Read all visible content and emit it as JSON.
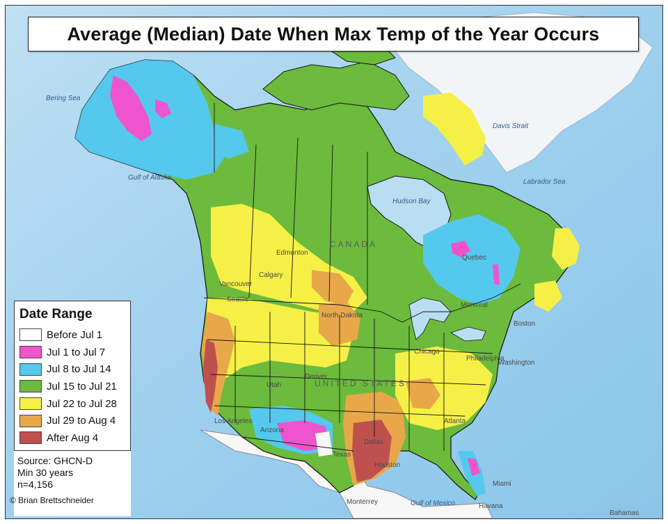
{
  "title": "Average (Median) Date When Max Temp of the Year Occurs",
  "legend": {
    "title": "Date Range",
    "items": [
      {
        "label": "Before Jul 1",
        "color": "#ffffff"
      },
      {
        "label": "Jul 1 to Jul 7",
        "color": "#ee55cc"
      },
      {
        "label": "Jul 8 to Jul 14",
        "color": "#55c8ee"
      },
      {
        "label": "Jul 15 to Jul 21",
        "color": "#6cbb3c"
      },
      {
        "label": "Jul 22 to Jul 28",
        "color": "#f6f046"
      },
      {
        "label": "Jul 29 to Aug 4",
        "color": "#e8a84a"
      },
      {
        "label": "After Aug 4",
        "color": "#c0504e"
      }
    ]
  },
  "source": {
    "line1": "Source: GHCN-D",
    "line2": "Min 30 years",
    "line3": "n=4,156"
  },
  "credit": "© Brian Brettschneider",
  "map_labels": {
    "bering_sea": "Bering Sea",
    "gulf_of_alaska": "Gulf of Alaska",
    "hudson_bay": "Hudson Bay",
    "davis_strait": "Davis Strait",
    "labrador_sea": "Labrador Sea",
    "canada": "CANADA",
    "united_states": "UNITED STATES",
    "edmonton": "Edmonton",
    "calgary": "Calgary",
    "vancouver": "Vancouver",
    "seattle": "Seattle",
    "quebec": "Quebec",
    "montreal": "Montreal",
    "boston": "Boston",
    "chicago": "Chicago",
    "philadelphia": "Philadelphia",
    "washington": "Washington",
    "denver": "Denver",
    "dallas": "Dallas",
    "houston": "Houston",
    "atlanta": "Atlanta",
    "miami": "Miami",
    "havana": "Havana",
    "monterrey": "Monterrey",
    "gulf_of_mexico": "Gulf of Mexico",
    "los_angeles": "Los Angeles",
    "arizona": "Arizona",
    "utah": "Utah",
    "north_dakota": "North Dakota",
    "texas": "Texas",
    "bahamas": "Bahamas"
  },
  "colors": {
    "ocean": "#a8d4ee",
    "ice_land": "#eef3f8",
    "border": "#111111"
  }
}
